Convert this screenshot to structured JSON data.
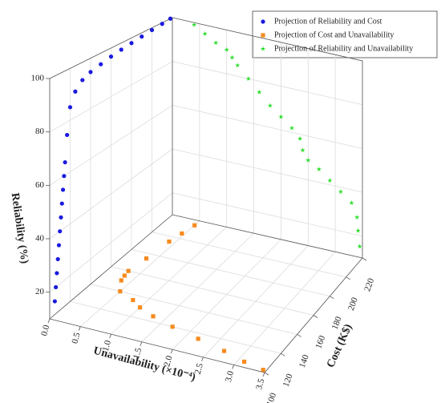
{
  "chart_data": {
    "type": "scatter3d",
    "xlabel": "Unavailability (×10⁻⁴)",
    "ylabel": "Cost (K$)",
    "zlabel": "Reliability (%)",
    "xlim": [
      0,
      3.5
    ],
    "xticks": [
      {
        "value": 0,
        "label": "0.0"
      },
      0.5,
      {
        "value": 1,
        "label": "1.0"
      },
      1.5,
      {
        "value": 2,
        "label": "2.0"
      },
      2.5,
      {
        "value": 3,
        "label": "3.0"
      },
      3.5
    ],
    "ylim": [
      100,
      220
    ],
    "yticks": [
      100,
      120,
      140,
      160,
      180,
      200,
      220
    ],
    "zlim": [
      10,
      100
    ],
    "zticks": [
      20,
      40,
      60,
      80,
      100
    ],
    "grid": true,
    "legend": "upper right",
    "series": [
      {
        "name": "Projection of Reliability and Cost",
        "color": "#1a1ae0",
        "marker": "circle",
        "y": [
          105,
          106,
          107,
          108,
          109,
          110,
          111,
          112,
          113,
          114,
          115,
          117,
          120,
          125,
          132,
          140,
          150,
          160,
          170,
          180,
          190,
          200,
          210,
          218
        ],
        "z": [
          15,
          20,
          25,
          30,
          35,
          40,
          45,
          50,
          55,
          60,
          65,
          75,
          85,
          90,
          93,
          94.5,
          95.5,
          96.5,
          97.2,
          97.8,
          98.4,
          99,
          99.5,
          100
        ]
      },
      {
        "name": "Projection of Cost and Unavailability",
        "color": "#f78a1e",
        "marker": "square",
        "x": [
          0.5,
          0.45,
          0.4,
          0.35,
          0.3,
          0.32,
          0.35,
          0.5,
          0.8,
          1.0,
          1.3,
          1.7,
          2.2,
          2.7,
          3.1,
          3.45
        ],
        "y": [
          215,
          205,
          195,
          175,
          160,
          155,
          150,
          140,
          135,
          130,
          125,
          120,
          115,
          110,
          105,
          102
        ]
      },
      {
        "name": "Projection of Reliability and Unavailability",
        "color": "#22dd22",
        "marker": "star",
        "x": [
          0.4,
          0.6,
          0.8,
          1.0,
          1.1,
          1.2,
          1.4,
          1.6,
          1.8,
          2.0,
          2.2,
          2.35,
          2.4,
          2.5,
          2.7,
          2.9,
          3.1,
          3.3,
          3.4,
          3.42,
          3.45
        ],
        "z": [
          99,
          96,
          93,
          91,
          88,
          85,
          80,
          75,
          70,
          66,
          62,
          58,
          53,
          49,
          46,
          42,
          38,
          34,
          28,
          22,
          15
        ]
      }
    ]
  }
}
